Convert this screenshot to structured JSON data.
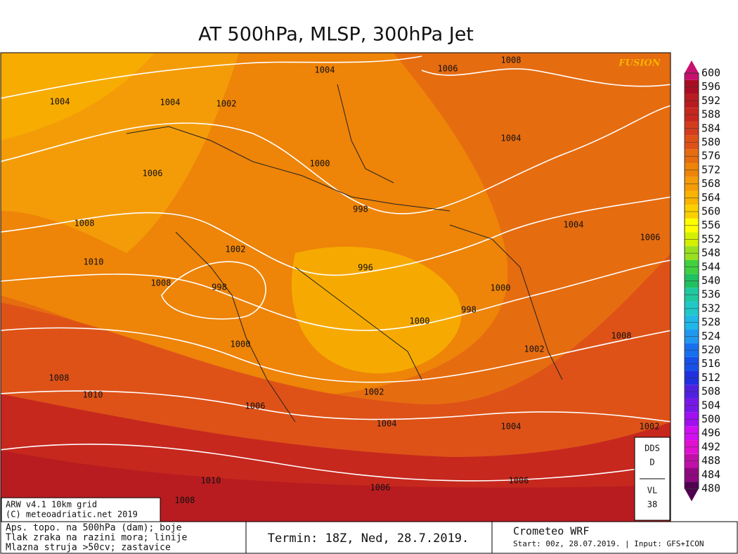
{
  "title": "AT 500hPa, MLSP, 300hPa Jet",
  "watermark": "FUSION",
  "isobar_labels": [
    1004,
    1006,
    1008,
    1004,
    1004,
    1002,
    1004,
    1006,
    1000,
    998,
    1008,
    1004,
    1006,
    1002,
    1010,
    996,
    1008,
    998,
    1000,
    998,
    1000,
    1008,
    1000,
    1002,
    1008,
    1010,
    1002,
    1006,
    1004,
    1004,
    1002,
    1010,
    1006,
    1006,
    1008
  ],
  "colorbar": [
    {
      "value": 600,
      "color": "#c8106e"
    },
    {
      "value": 596,
      "color": "#a80e22"
    },
    {
      "value": 592,
      "color": "#b81c20"
    },
    {
      "value": 588,
      "color": "#c6281e"
    },
    {
      "value": 584,
      "color": "#d43c1e"
    },
    {
      "value": 580,
      "color": "#de5218"
    },
    {
      "value": 576,
      "color": "#e66c10"
    },
    {
      "value": 572,
      "color": "#ee8408"
    },
    {
      "value": 568,
      "color": "#f49c08"
    },
    {
      "value": 564,
      "color": "#f8b400"
    },
    {
      "value": 560,
      "color": "#fcd000"
    },
    {
      "value": 556,
      "color": "#ffff00"
    },
    {
      "value": 552,
      "color": "#d4f000"
    },
    {
      "value": 548,
      "color": "#98e020"
    },
    {
      "value": 544,
      "color": "#40d040"
    },
    {
      "value": 540,
      "color": "#20c060"
    },
    {
      "value": 536,
      "color": "#20c8a0"
    },
    {
      "value": 532,
      "color": "#20c8c8"
    },
    {
      "value": 528,
      "color": "#20b8e8"
    },
    {
      "value": 524,
      "color": "#2098f0"
    },
    {
      "value": 520,
      "color": "#1870f0"
    },
    {
      "value": 516,
      "color": "#1850e8"
    },
    {
      "value": 512,
      "color": "#2030e0"
    },
    {
      "value": 508,
      "color": "#5020e0"
    },
    {
      "value": 504,
      "color": "#7818e8"
    },
    {
      "value": 500,
      "color": "#a010f0"
    },
    {
      "value": 496,
      "color": "#d010f0"
    },
    {
      "value": 492,
      "color": "#e010d0"
    },
    {
      "value": 488,
      "color": "#c010a8"
    },
    {
      "value": 484,
      "color": "#900880"
    },
    {
      "value": 480,
      "color": "#500050"
    }
  ],
  "model_box": {
    "line1": "ARW v4.1 10km grid",
    "line2": "(C) meteoadriatic.net 2019"
  },
  "legend_box": {
    "line1": "Aps. topo. na 500hPa (dam); boje",
    "line2": "Tlak zraka na razini mora; linije",
    "line3": "Mlazna struja >50cv; zastavice"
  },
  "termin": "Termin: 18Z, Ned, 28.7.2019.",
  "source_box": {
    "title": "Crometeo WRF",
    "subtitle": "Start: 00z, 28.07.2019. | Input: GFS+ICON"
  },
  "station_box": {
    "line1": "DDS",
    "line2": "D",
    "line3": "VL",
    "line4": "38"
  }
}
